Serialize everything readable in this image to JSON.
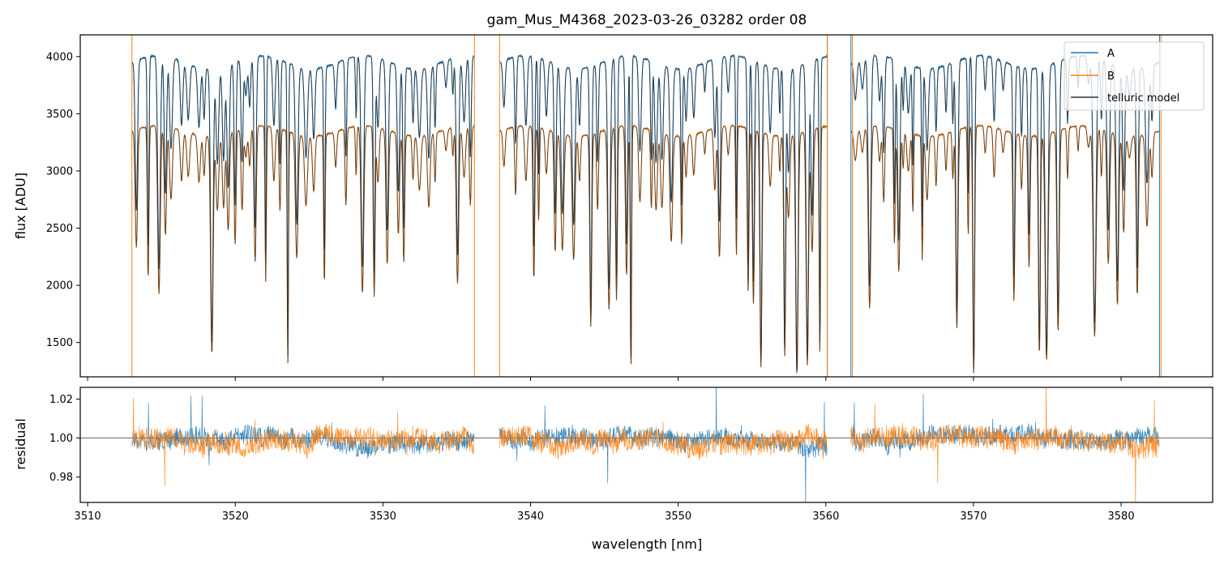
{
  "chart_data": {
    "title": "gam_Mus_M4368_2023-03-26_03282  order 08",
    "x": {
      "label": "wavelength [nm]",
      "lim": [
        3509.5,
        3586.2
      ],
      "ticks": [
        3510,
        3520,
        3530,
        3540,
        3550,
        3560,
        3570,
        3580
      ]
    },
    "panels": [
      {
        "type": "line",
        "ylabel": "flux [ADU]",
        "ylim": [
          1200,
          4190
        ],
        "yticks": [
          1500,
          2000,
          2500,
          3000,
          3500,
          4000
        ],
        "legend": {
          "placement": "top-right",
          "entries": [
            "A",
            "B",
            "telluric model"
          ]
        },
        "segments": [
          [
            3513.0,
            3536.2
          ],
          [
            3537.9,
            3560.1
          ],
          [
            3561.7,
            3582.6
          ]
        ],
        "series": [
          {
            "name": "A",
            "color": "#1f77b4",
            "continuum": 3950,
            "min_level": 1200
          },
          {
            "name": "B",
            "color": "#ff7f0e",
            "continuum": 3350,
            "min_level": 1200
          },
          {
            "name": "telluric model",
            "color": "#333333"
          }
        ]
      },
      {
        "type": "line",
        "ylabel": "residual",
        "ylim": [
          0.967,
          1.026
        ],
        "yticks": [
          0.98,
          1.0,
          1.02
        ],
        "reference_line": 1.0,
        "series": [
          {
            "name": "A",
            "color": "#1f77b4",
            "center": 1.0,
            "spread": 0.006
          },
          {
            "name": "B",
            "color": "#ff7f0e",
            "center": 1.0,
            "spread": 0.007
          }
        ]
      }
    ]
  }
}
